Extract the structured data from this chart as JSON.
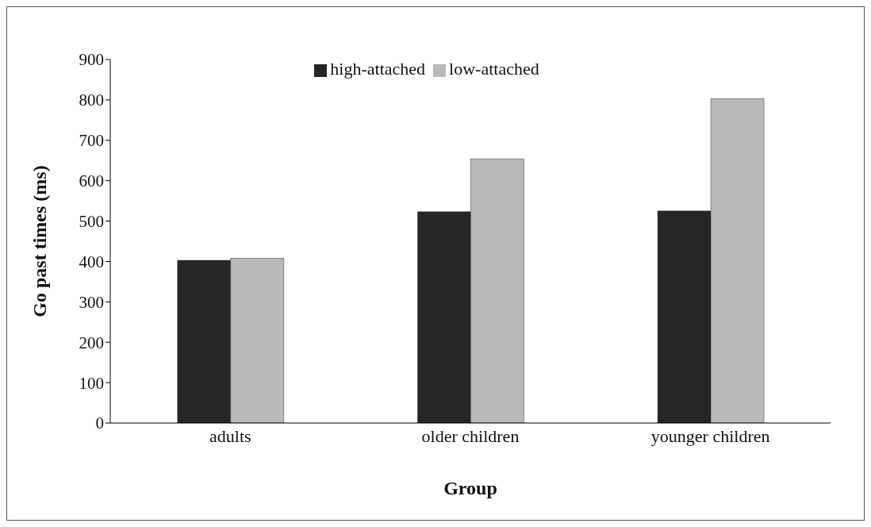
{
  "chart_data": {
    "type": "bar",
    "xlabel": "Group",
    "ylabel": "Go past times (ms)",
    "categories": [
      "adults",
      "older children",
      "younger children"
    ],
    "series": [
      {
        "name": "high-attached",
        "color": "#262626",
        "values": [
          403,
          523,
          525
        ]
      },
      {
        "name": "low-attached",
        "color": "#b9b9b9",
        "values": [
          408,
          654,
          803
        ]
      }
    ],
    "ylim": [
      0,
      900
    ],
    "yticks": [
      0,
      100,
      200,
      300,
      400,
      500,
      600,
      700,
      800,
      900
    ],
    "grid": false,
    "legend": "top"
  }
}
